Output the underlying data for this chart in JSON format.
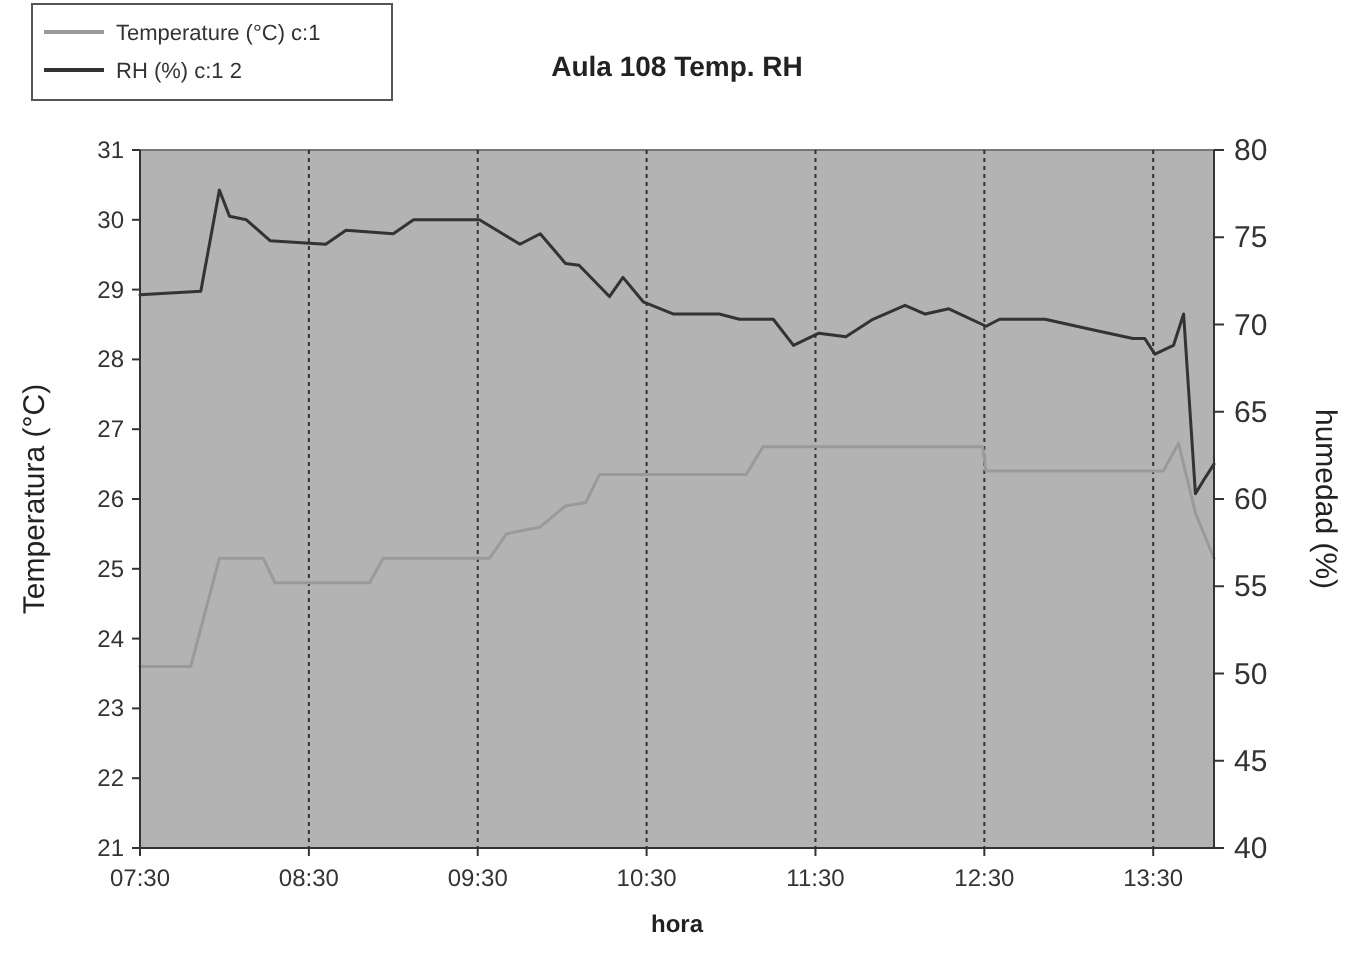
{
  "chart_data": {
    "type": "line",
    "title": "Aula 108 Temp. RH",
    "xlabel": "hora",
    "ylabel": "Temperatura (°C)",
    "y2label": "humedad (%)",
    "xlim": [
      7.5,
      13.86
    ],
    "xticks": [
      {
        "value": 7.5,
        "label": "07:30"
      },
      {
        "value": 8.5,
        "label": "08:30"
      },
      {
        "value": 9.5,
        "label": "09:30"
      },
      {
        "value": 10.5,
        "label": "10:30"
      },
      {
        "value": 11.5,
        "label": "11:30"
      },
      {
        "value": 12.5,
        "label": "12:30"
      },
      {
        "value": 13.5,
        "label": "13:30"
      }
    ],
    "ylim": [
      21,
      31
    ],
    "yticks": [
      21,
      22,
      23,
      24,
      25,
      26,
      27,
      28,
      29,
      30,
      31
    ],
    "y2lim": [
      40,
      80
    ],
    "y2ticks": [
      40,
      45,
      50,
      55,
      60,
      65,
      70,
      75,
      80
    ],
    "grid": "x",
    "legend": "top left",
    "line_style": "solid",
    "series": [
      {
        "name": "Temperature (°C) c:1",
        "color": "#9a9a9a",
        "x": [
          7.5,
          7.8,
          7.97,
          8.23,
          8.3,
          8.86,
          8.94,
          9.57,
          9.67,
          9.87,
          10.02,
          10.14,
          10.22,
          11.09,
          11.19,
          12.49,
          12.51,
          13.56,
          13.65,
          13.75,
          13.86
        ],
        "values": [
          23.6,
          23.6,
          25.15,
          25.15,
          24.8,
          24.8,
          25.15,
          25.15,
          25.5,
          25.6,
          25.9,
          25.95,
          26.35,
          26.35,
          26.75,
          26.75,
          26.4,
          26.4,
          26.8,
          25.8,
          25.15
        ]
      },
      {
        "name": "RH (%) c:1 2",
        "color": "#333333",
        "axis": "y2",
        "x": [
          7.5,
          7.86,
          7.97,
          8.03,
          8.13,
          8.27,
          8.6,
          8.72,
          9.0,
          9.12,
          9.51,
          9.75,
          9.87,
          10.02,
          10.1,
          10.28,
          10.36,
          10.48,
          10.66,
          10.93,
          11.05,
          11.25,
          11.37,
          11.52,
          11.68,
          11.84,
          12.03,
          12.15,
          12.29,
          12.51,
          12.59,
          12.86,
          13.14,
          13.38,
          13.45,
          13.51,
          13.62,
          13.68,
          13.75,
          13.8,
          13.86
        ],
        "values": [
          71.7,
          71.9,
          77.7,
          76.2,
          76,
          74.8,
          74.6,
          75.4,
          75.2,
          76,
          76,
          74.6,
          75.2,
          73.5,
          73.4,
          71.6,
          72.7,
          71.3,
          70.6,
          70.6,
          70.3,
          70.3,
          68.8,
          69.5,
          69.3,
          70.3,
          71.1,
          70.6,
          70.9,
          69.9,
          70.3,
          70.3,
          69.7,
          69.2,
          69.2,
          68.3,
          68.8,
          70.6,
          60.3,
          61.1,
          62
        ]
      }
    ]
  }
}
